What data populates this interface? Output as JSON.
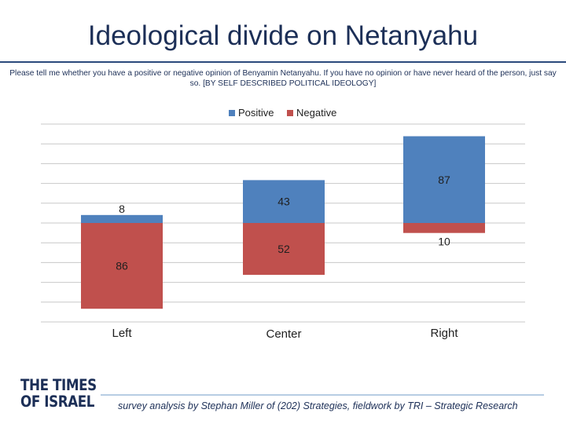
{
  "slide": {
    "title": "Ideological divide on Netanyahu",
    "subtitle": "Please tell me whether you have a positive or negative opinion of Benyamin Netanyahu. If you have no opinion or have never heard of the person, just say so. [BY SELF DESCRIBED POLITICAL IDEOLOGY]",
    "footer": "survey analysis by Stephan Miller of (202) Strategies, fieldwork by TRI – Strategic Research",
    "logo_line1": "THE TIMES",
    "logo_line2": "OF ISRAEL"
  },
  "colors": {
    "positive": "#4f81bd",
    "negative": "#c0504d",
    "grid": "#c8c8c8",
    "title": "#1c2f57"
  },
  "chart_data": {
    "type": "bar",
    "stacking": "diverging",
    "categories": [
      "Left",
      "Center",
      "Right"
    ],
    "series": [
      {
        "name": "Positive",
        "values": [
          8,
          43,
          87
        ],
        "direction": "up"
      },
      {
        "name": "Negative",
        "values": [
          86,
          52,
          10
        ],
        "direction": "down"
      }
    ],
    "legend_position": "top-center",
    "grid": true,
    "ylim": [
      -100,
      100
    ]
  }
}
